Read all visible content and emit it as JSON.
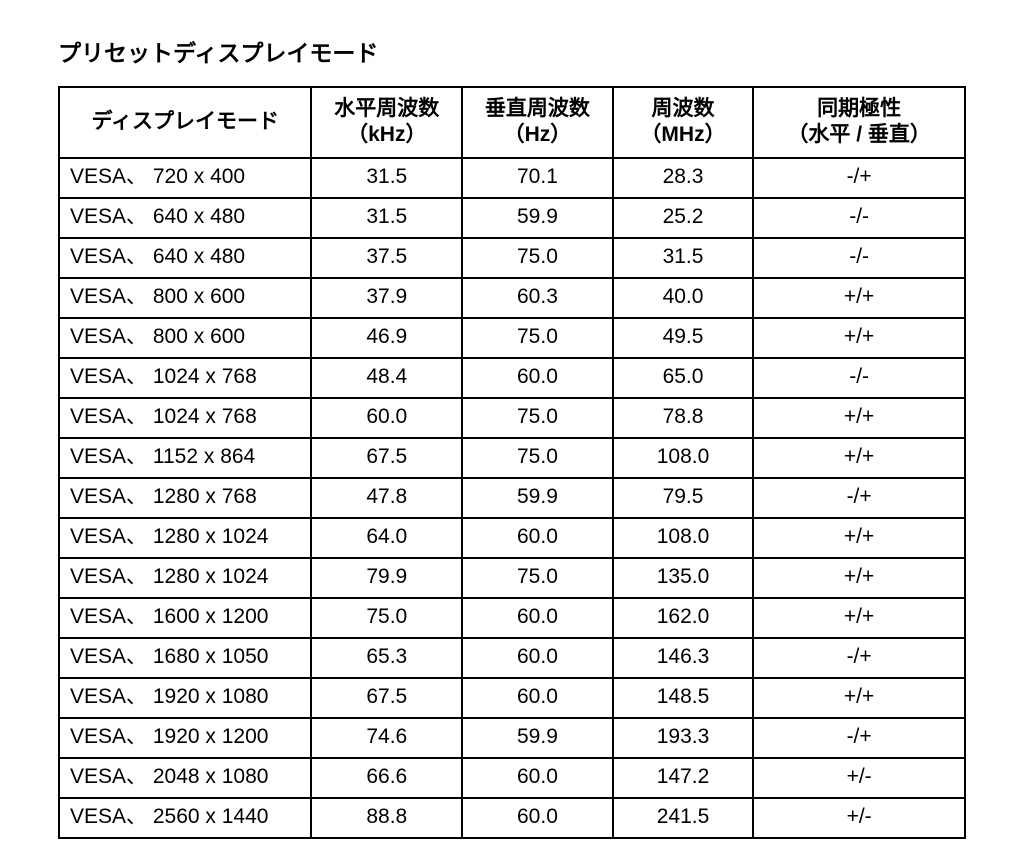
{
  "title": "プリセットディスプレイモード",
  "table": {
    "headers": {
      "mode": "ディスプレイモード",
      "hfreq_l1": "水平周波数",
      "hfreq_l2": "（kHz）",
      "vfreq_l1": "垂直周波数",
      "vfreq_l2": "（Hz）",
      "freq_l1": "周波数",
      "freq_l2": "（MHz）",
      "sync_l1": "同期極性",
      "sync_l2": "（水平 / 垂直）"
    },
    "rows": [
      {
        "mode": "VESA、 720 x 400",
        "h": "31.5",
        "v": "70.1",
        "f": "28.3",
        "s": "-/+"
      },
      {
        "mode": "VESA、 640 x 480",
        "h": "31.5",
        "v": "59.9",
        "f": "25.2",
        "s": "-/-"
      },
      {
        "mode": "VESA、 640 x 480",
        "h": "37.5",
        "v": "75.0",
        "f": "31.5",
        "s": "-/-"
      },
      {
        "mode": "VESA、 800 x 600",
        "h": "37.9",
        "v": "60.3",
        "f": "40.0",
        "s": "+/+"
      },
      {
        "mode": "VESA、 800 x 600",
        "h": "46.9",
        "v": "75.0",
        "f": "49.5",
        "s": "+/+"
      },
      {
        "mode": "VESA、 1024 x 768",
        "h": "48.4",
        "v": "60.0",
        "f": "65.0",
        "s": "-/-"
      },
      {
        "mode": "VESA、 1024 x 768",
        "h": "60.0",
        "v": "75.0",
        "f": "78.8",
        "s": "+/+"
      },
      {
        "mode": "VESA、 1152 x 864",
        "h": "67.5",
        "v": "75.0",
        "f": "108.0",
        "s": "+/+"
      },
      {
        "mode": "VESA、 1280 x 768",
        "h": "47.8",
        "v": "59.9",
        "f": "79.5",
        "s": "-/+"
      },
      {
        "mode": "VESA、 1280 x 1024",
        "h": "64.0",
        "v": "60.0",
        "f": "108.0",
        "s": "+/+"
      },
      {
        "mode": "VESA、 1280 x 1024",
        "h": "79.9",
        "v": "75.0",
        "f": "135.0",
        "s": "+/+"
      },
      {
        "mode": "VESA、 1600 x 1200",
        "h": "75.0",
        "v": "60.0",
        "f": "162.0",
        "s": "+/+"
      },
      {
        "mode": "VESA、 1680 x 1050",
        "h": "65.3",
        "v": "60.0",
        "f": "146.3",
        "s": "-/+"
      },
      {
        "mode": "VESA、 1920 x 1080",
        "h": "67.5",
        "v": "60.0",
        "f": "148.5",
        "s": "+/+"
      },
      {
        "mode": "VESA、 1920 x 1200",
        "h": "74.6",
        "v": "59.9",
        "f": "193.3",
        "s": "-/+"
      },
      {
        "mode": "VESA、 2048 x 1080",
        "h": "66.6",
        "v": "60.0",
        "f": "147.2",
        "s": "+/-"
      },
      {
        "mode": "VESA、 2560 x 1440",
        "h": "88.8",
        "v": "60.0",
        "f": "241.5",
        "s": "+/-"
      }
    ]
  },
  "style": {
    "border_color": "#000000",
    "background_color": "#ffffff",
    "text_color": "#000000",
    "font_size_title_pt": 17,
    "font_size_cell_pt": 16
  }
}
